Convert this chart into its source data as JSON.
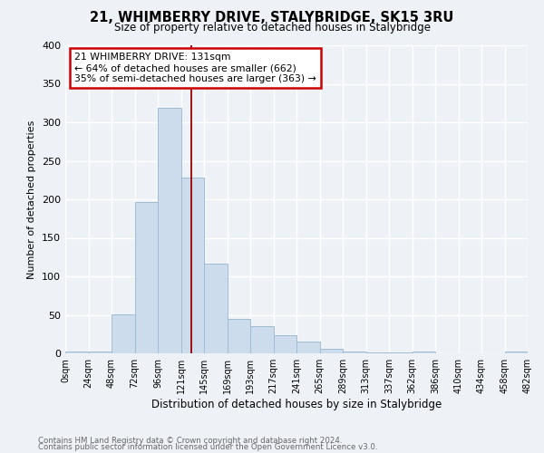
{
  "title": "21, WHIMBERRY DRIVE, STALYBRIDGE, SK15 3RU",
  "subtitle": "Size of property relative to detached houses in Stalybridge",
  "xlabel": "Distribution of detached houses by size in Stalybridge",
  "ylabel": "Number of detached properties",
  "bar_color": "#ccdcec",
  "bar_edge_color": "#a0bcd4",
  "background_color": "#eef2f7",
  "grid_color": "#ffffff",
  "bin_edges": [
    0,
    24,
    48,
    72,
    96,
    120,
    144,
    168,
    192,
    216,
    240,
    264,
    288,
    312,
    336,
    360,
    384,
    408,
    432,
    456,
    480
  ],
  "bin_labels": [
    "0sqm",
    "24sqm",
    "48sqm",
    "72sqm",
    "96sqm",
    "121sqm",
    "145sqm",
    "169sqm",
    "193sqm",
    "217sqm",
    "241sqm",
    "265sqm",
    "289sqm",
    "313sqm",
    "337sqm",
    "362sqm",
    "386sqm",
    "410sqm",
    "434sqm",
    "458sqm",
    "482sqm"
  ],
  "counts": [
    2,
    2,
    51,
    196,
    319,
    228,
    116,
    45,
    35,
    24,
    15,
    6,
    2,
    1,
    1,
    2,
    0,
    0,
    0,
    2
  ],
  "vline_x": 131,
  "vline_color": "#990000",
  "annotation_title": "21 WHIMBERRY DRIVE: 131sqm",
  "annotation_line1": "← 64% of detached houses are smaller (662)",
  "annotation_line2": "35% of semi-detached houses are larger (363) →",
  "annotation_box_color": "#ffffff",
  "annotation_border_color": "#cc0000",
  "ylim": [
    0,
    400
  ],
  "yticks": [
    0,
    50,
    100,
    150,
    200,
    250,
    300,
    350,
    400
  ],
  "footnote1": "Contains HM Land Registry data © Crown copyright and database right 2024.",
  "footnote2": "Contains public sector information licensed under the Open Government Licence v3.0."
}
